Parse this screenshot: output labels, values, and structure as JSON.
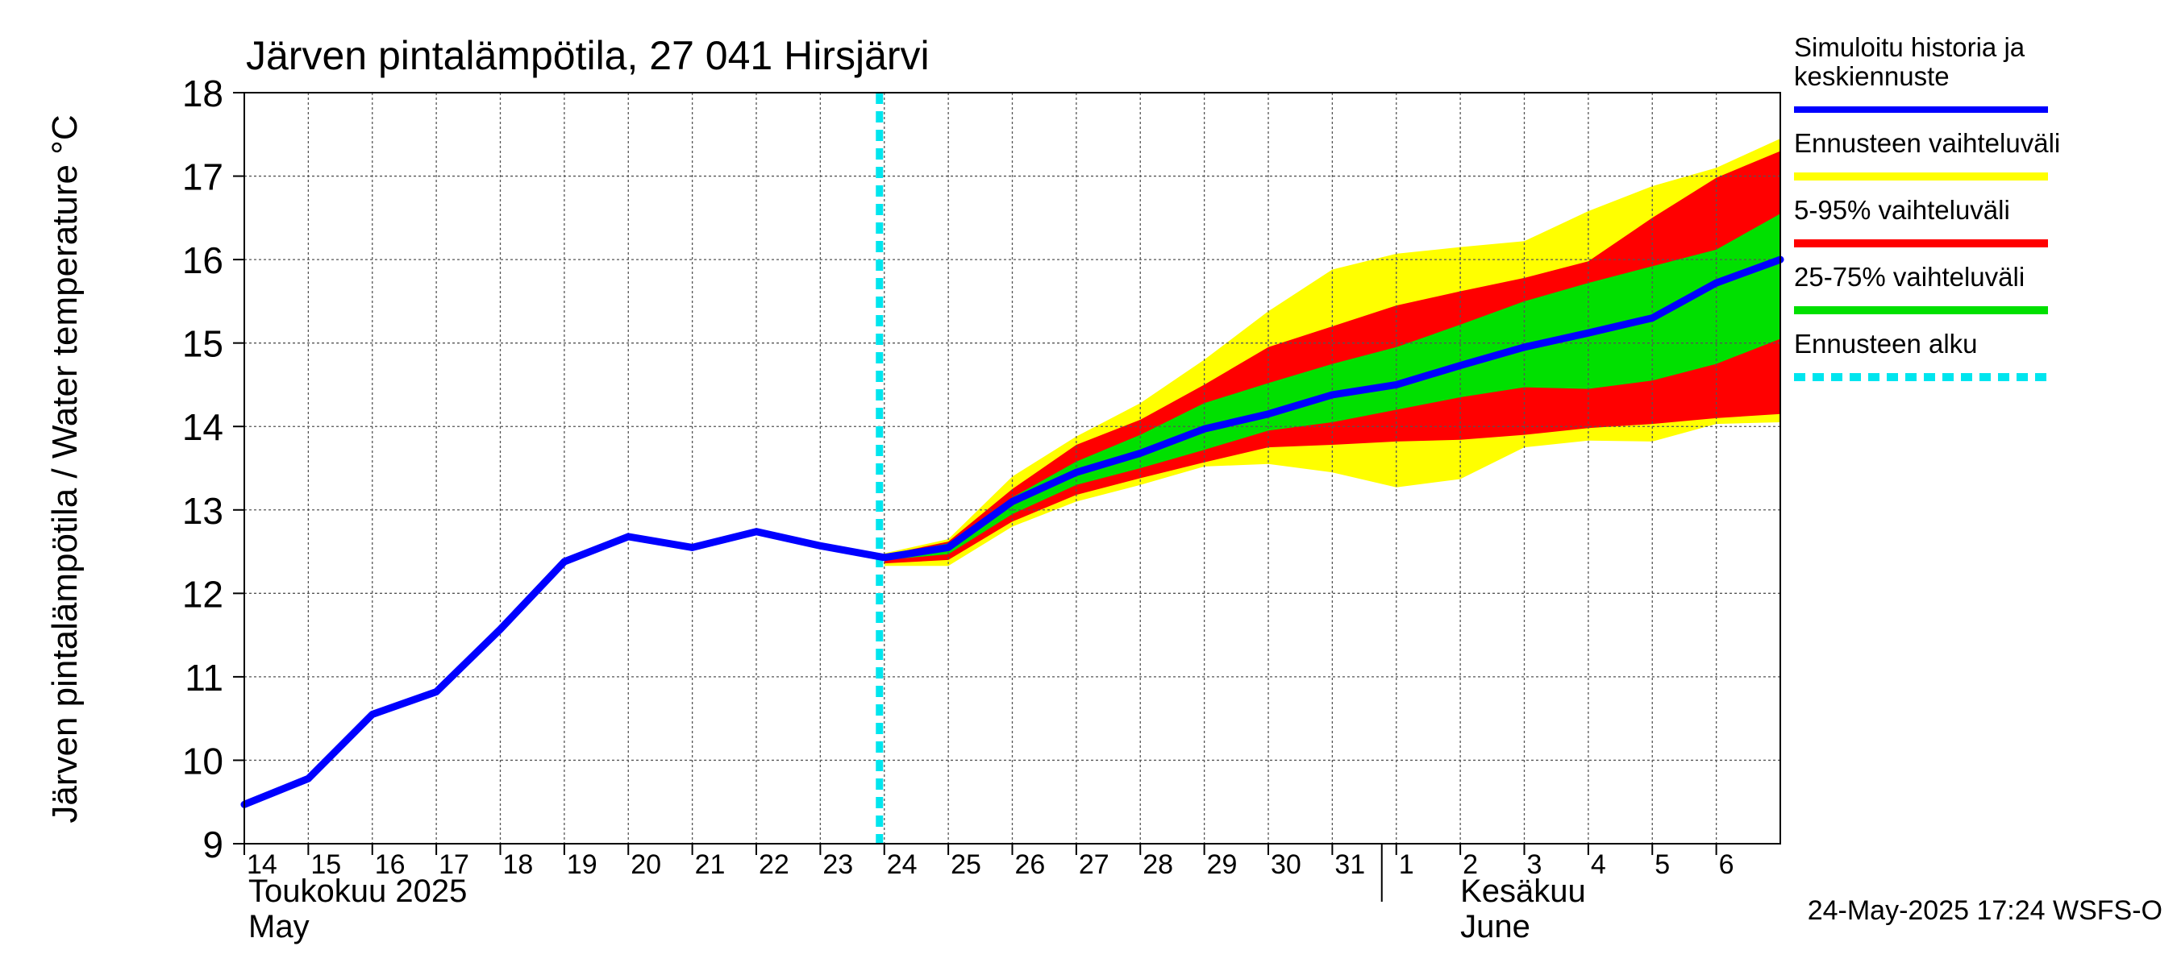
{
  "chart_data": {
    "type": "line",
    "title": "Järven pintalämpötila, 27 041 Hirsjärvi",
    "ylabel": "Järven pintalämpötila / Water temperature °C",
    "ylim": [
      9,
      18
    ],
    "yticks": [
      "9",
      "10",
      "11",
      "12",
      "13",
      "14",
      "15",
      "16",
      "17",
      "18"
    ],
    "xlim": [
      0,
      24
    ],
    "xticks": [
      "14",
      "15",
      "16",
      "17",
      "18",
      "19",
      "20",
      "21",
      "22",
      "23",
      "24",
      "25",
      "26",
      "27",
      "28",
      "29",
      "30",
      "31",
      "1",
      "2",
      "3",
      "4",
      "5",
      "6"
    ],
    "month_labels": [
      {
        "fi": "Toukokuu  2025",
        "en": "May"
      },
      {
        "fi": "Kesäkuu",
        "en": "June"
      }
    ],
    "forecast_start_x": 10,
    "history": {
      "x": [
        0,
        1,
        2,
        3,
        4,
        5,
        6,
        7,
        8,
        9,
        10,
        11
      ],
      "y": [
        9.47,
        9.78,
        10.55,
        10.82,
        11.57,
        12.38,
        12.68,
        12.55,
        12.74,
        12.57,
        12.43,
        12.55
      ]
    },
    "forecast_x": [
      10,
      11,
      12,
      13,
      14,
      15,
      16,
      17,
      18,
      19,
      20,
      21,
      22,
      23,
      24
    ],
    "series": [
      {
        "name": "Simuloitu historia ja keskiennuste",
        "name_lines": [
          "Simuloitu historia ja",
          "keskiennuste"
        ],
        "role": "median",
        "color": "#0000ff",
        "y": [
          12.43,
          12.55,
          13.1,
          13.45,
          13.68,
          13.97,
          14.15,
          14.38,
          14.5,
          14.73,
          14.95,
          15.12,
          15.3,
          15.72,
          16.0
        ]
      },
      {
        "name": "Ennusteen vaihteluväli",
        "role": "range",
        "color": "#ffff00",
        "upper": [
          12.48,
          12.65,
          13.4,
          13.88,
          14.28,
          14.8,
          15.38,
          15.88,
          16.07,
          16.15,
          16.22,
          16.58,
          16.88,
          17.1,
          17.45
        ],
        "lower": [
          12.33,
          12.33,
          12.8,
          13.1,
          13.3,
          13.52,
          13.55,
          13.45,
          13.27,
          13.37,
          13.75,
          13.83,
          13.82,
          14.03,
          14.05
        ]
      },
      {
        "name": "5-95% vaihteluväli",
        "role": "range",
        "color": "#ff0000",
        "upper": [
          12.46,
          12.62,
          13.25,
          13.78,
          14.08,
          14.5,
          14.95,
          15.2,
          15.45,
          15.62,
          15.78,
          15.98,
          16.5,
          16.98,
          17.3
        ],
        "lower": [
          12.36,
          12.4,
          12.86,
          13.18,
          13.38,
          13.57,
          13.75,
          13.78,
          13.82,
          13.84,
          13.9,
          13.98,
          14.03,
          14.1,
          14.15
        ]
      },
      {
        "name": "25-75% vaihteluväli",
        "role": "range",
        "color": "#00e000",
        "upper": [
          12.45,
          12.6,
          13.15,
          13.58,
          13.9,
          14.28,
          14.52,
          14.75,
          14.95,
          15.22,
          15.5,
          15.72,
          15.92,
          16.12,
          16.55
        ],
        "lower": [
          12.4,
          12.47,
          12.95,
          13.3,
          13.5,
          13.72,
          13.95,
          14.05,
          14.2,
          14.35,
          14.47,
          14.45,
          14.55,
          14.75,
          15.05
        ]
      },
      {
        "name": "Ennusteen alku",
        "role": "marker",
        "color": "#00e5ee"
      }
    ],
    "grid": true,
    "legend_position": "right",
    "timestamp": "24-May-2025 17:24 WSFS-O"
  }
}
